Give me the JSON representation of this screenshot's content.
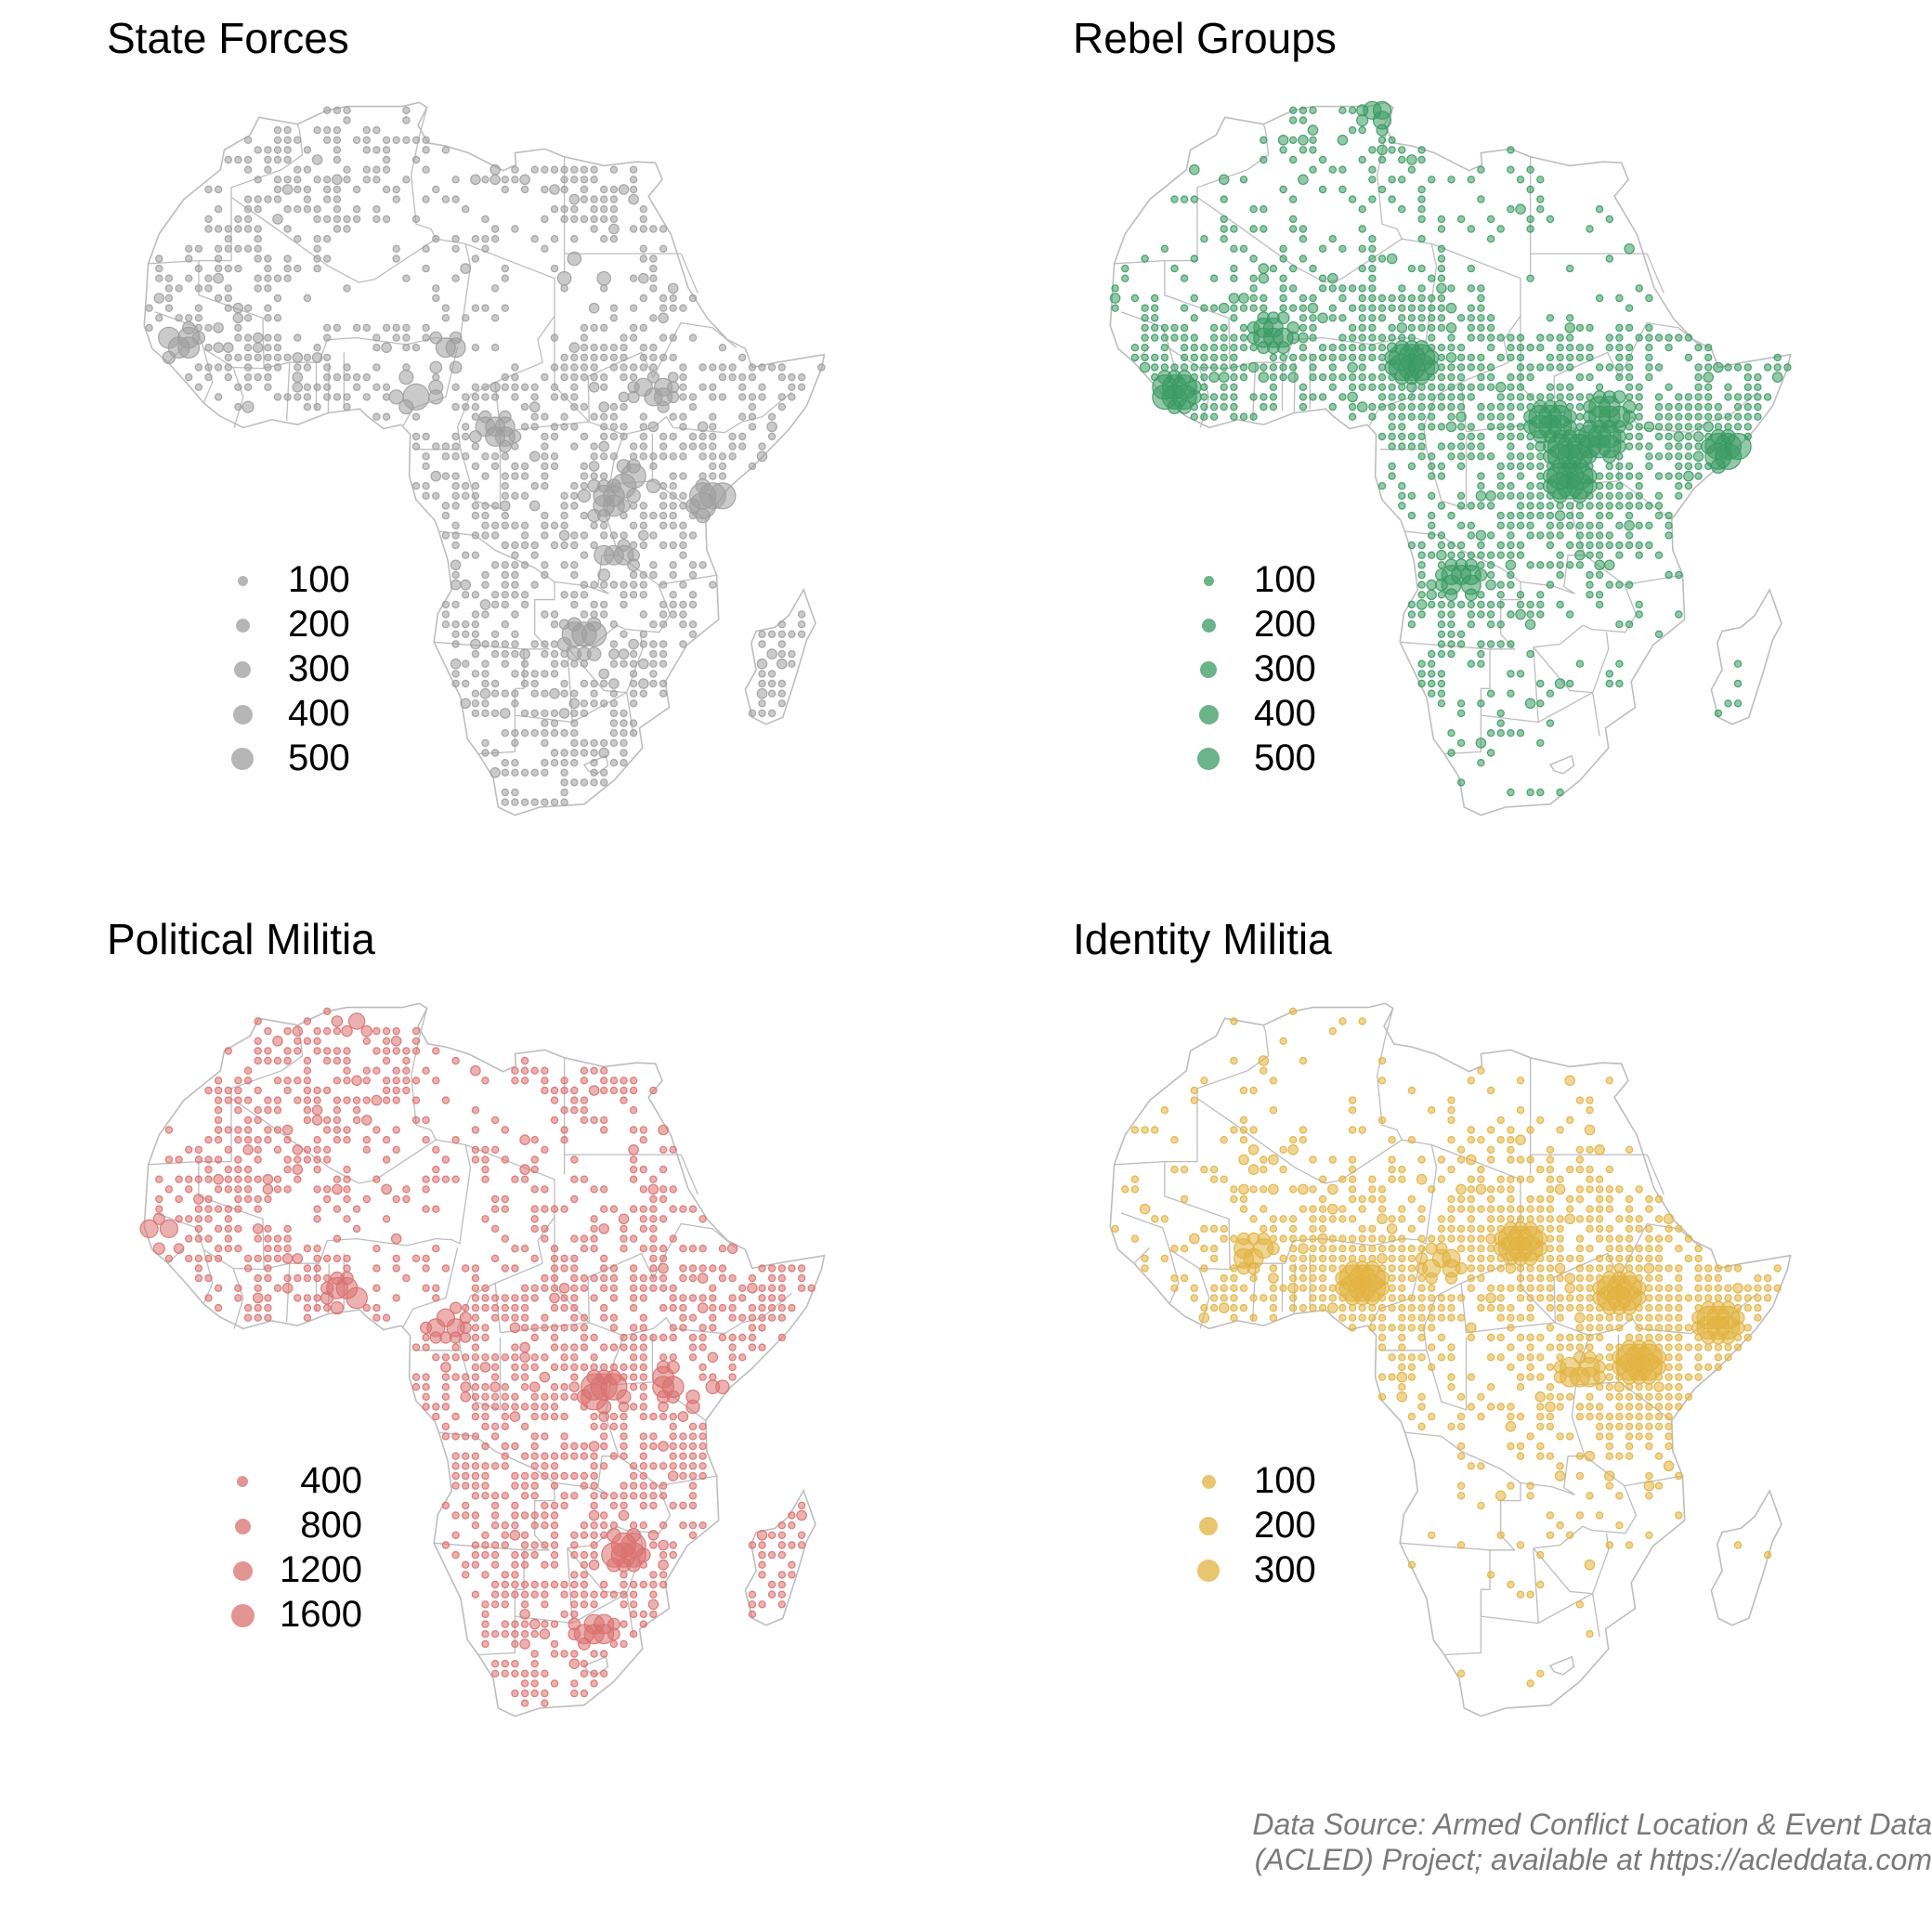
{
  "panels": [
    {
      "title": "State Forces",
      "color": "#9e9e9e",
      "legend": [
        "100",
        "200",
        "300",
        "400",
        "500"
      ],
      "hotspots": [
        [
          10,
          8,
          1.0
        ],
        [
          27,
          20,
          0.9
        ],
        [
          -14,
          13,
          0.7
        ],
        [
          32,
          -1,
          0.9
        ],
        [
          40,
          -3,
          1.0
        ],
        [
          18,
          4,
          0.6
        ],
        [
          29,
          -3,
          0.7
        ],
        [
          27,
          -17,
          0.9
        ],
        [
          30,
          -9,
          0.6
        ],
        [
          -6,
          5,
          0.5
        ],
        [
          13,
          12,
          0.6
        ],
        [
          34,
          8,
          0.5
        ]
      ]
    },
    {
      "title": "Rebel Groups",
      "color": "#3a9a62",
      "legend": [
        "100",
        "200",
        "300",
        "400",
        "500"
      ],
      "hotspots": [
        [
          13,
          11,
          1.0
        ],
        [
          -11,
          8,
          0.9
        ],
        [
          29,
          -1,
          1.0
        ],
        [
          29,
          2,
          0.9
        ],
        [
          45,
          2,
          1.0
        ],
        [
          27,
          5,
          0.8
        ],
        [
          33,
          6,
          0.7
        ],
        [
          -1,
          14,
          0.6
        ],
        [
          10,
          36,
          0.5
        ],
        [
          18,
          -11,
          0.6
        ],
        [
          32,
          3,
          0.8
        ]
      ]
    },
    {
      "title": "Political Militia",
      "color": "#d9716f",
      "legend": [
        "400",
        "800",
        "1200",
        "1600"
      ],
      "hotspots": [
        [
          29,
          -2,
          1.0
        ],
        [
          40,
          -3,
          0.9
        ],
        [
          31,
          -18,
          0.9
        ],
        [
          15,
          13,
          0.7
        ],
        [
          3,
          8,
          0.7
        ],
        [
          -16,
          14,
          0.5
        ],
        [
          28,
          -26,
          0.6
        ],
        [
          36,
          -1,
          0.7
        ],
        [
          4,
          36,
          0.4
        ],
        [
          13,
          5,
          0.5
        ]
      ]
    },
    {
      "title": "Identity Militia",
      "color": "#e1b33f",
      "legend": [
        "100",
        "200",
        "300"
      ],
      "hotspots": [
        [
          8,
          9,
          1.0
        ],
        [
          24,
          13,
          0.9
        ],
        [
          34,
          8,
          0.9
        ],
        [
          36,
          1,
          1.0
        ],
        [
          44,
          5,
          0.8
        ],
        [
          -3,
          12,
          0.6
        ],
        [
          30,
          0,
          0.6
        ],
        [
          16,
          11,
          0.5
        ]
      ]
    }
  ],
  "caption": {
    "line1": "Data Source: Armed Conflict Location & Event Data",
    "line2": "(ACLED)  Project; available at https://acleddata.com"
  }
}
